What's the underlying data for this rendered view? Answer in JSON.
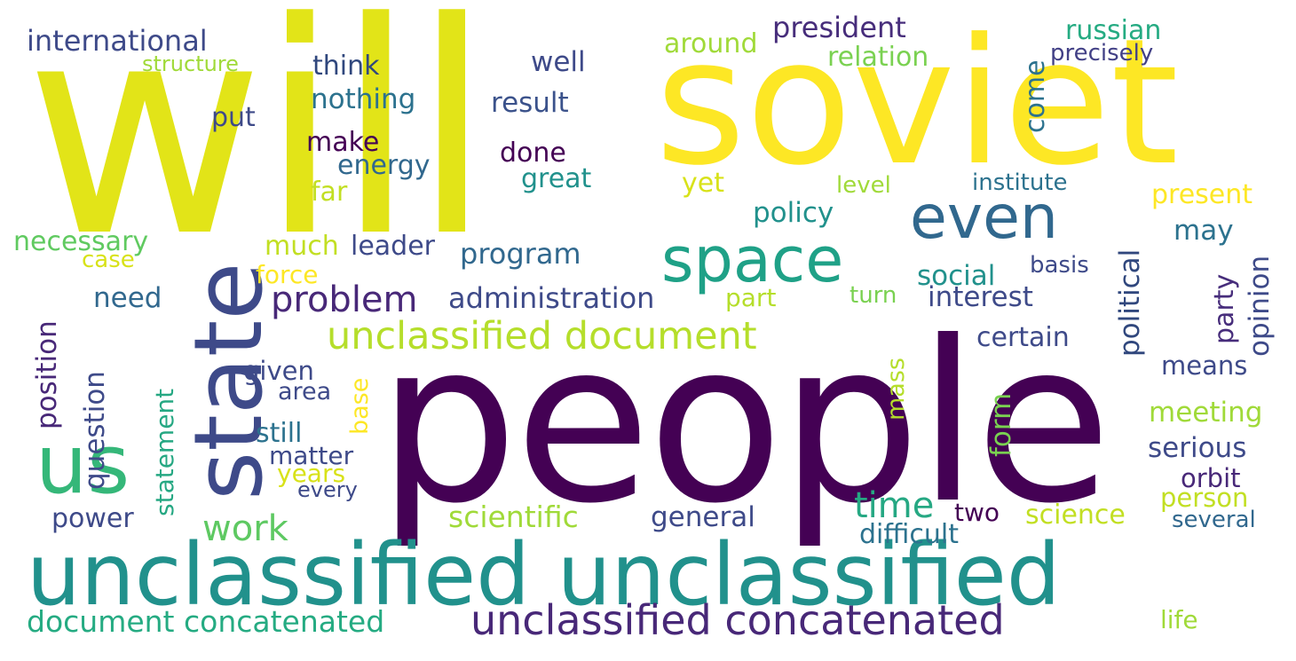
{
  "palette": {
    "background": "#ffffff",
    "dark_purple": "#440154",
    "indigo": "#3e4a89",
    "blue": "#31688e",
    "teal": "#26828e",
    "green": "#35b779",
    "light_green": "#6ece58",
    "lime": "#b5de2b",
    "yellow": "#fde725"
  },
  "words": [
    "will",
    "soviet",
    "people",
    "state",
    "even",
    "space",
    "us",
    "unclassified unclassified",
    "unclassified document",
    "unclassified concatenated",
    "document concatenated",
    "problem",
    "administration",
    "international",
    "structure",
    "think",
    "nothing",
    "put",
    "well",
    "result",
    "around",
    "president",
    "relation",
    "russian",
    "precisely",
    "come",
    "make",
    "energy",
    "done",
    "great",
    "far",
    "yet",
    "level",
    "institute",
    "present",
    "policy",
    "political",
    "necessary",
    "case",
    "much",
    "leader",
    "program",
    "may",
    "opinion",
    "force",
    "social",
    "basis",
    "party",
    "need",
    "part",
    "turn",
    "interest",
    "position",
    "question",
    "certain",
    "given",
    "area",
    "base",
    "statement",
    "mass",
    "form",
    "means",
    "still",
    "meeting",
    "matter",
    "years",
    "every",
    "serious",
    "orbit",
    "time",
    "work",
    "person",
    "power",
    "scientific",
    "general",
    "two",
    "science",
    "several",
    "difficult",
    "life"
  ]
}
